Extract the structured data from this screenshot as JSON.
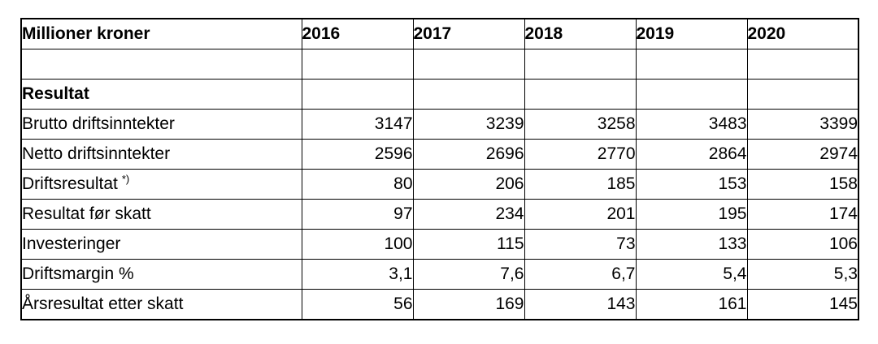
{
  "table": {
    "unit_label": "Millioner kroner",
    "years": [
      "2016",
      "2017",
      "2018",
      "2019",
      "2020"
    ],
    "section_title": "Resultat",
    "rows": [
      {
        "label": "Brutto driftsinntekter",
        "values": [
          "3147",
          "3239",
          "3258",
          "3483",
          "3399"
        ]
      },
      {
        "label": "Netto driftsinntekter",
        "values": [
          "2596",
          "2696",
          "2770",
          "2864",
          "2974"
        ]
      },
      {
        "label": "Driftsresultat",
        "sup": "*)",
        "values": [
          "80",
          "206",
          "185",
          "153",
          "158"
        ]
      },
      {
        "label": "Resultat før skatt",
        "values": [
          "97",
          "234",
          "201",
          "195",
          "174"
        ]
      },
      {
        "label": "Investeringer",
        "values": [
          "100",
          "115",
          "73",
          "133",
          "106"
        ]
      },
      {
        "label": "Driftsmargin %",
        "values": [
          "3,1",
          "7,6",
          "6,7",
          "5,4",
          "5,3"
        ]
      },
      {
        "label": "Årsresultat etter skatt",
        "values": [
          "56",
          "169",
          "143",
          "161",
          "145"
        ]
      }
    ],
    "colors": {
      "border": "#000000",
      "text": "#000000",
      "background": "#ffffff"
    }
  }
}
